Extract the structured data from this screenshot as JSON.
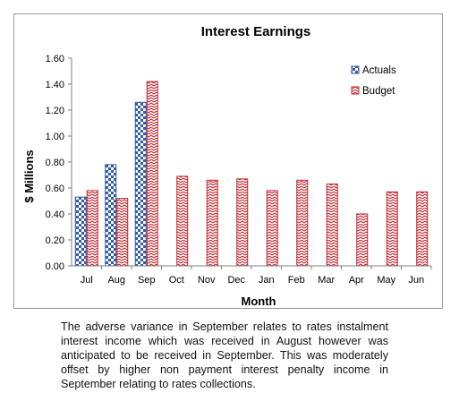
{
  "chart_data": {
    "type": "bar",
    "title": "Interest Earnings",
    "xlabel": "Month",
    "ylabel": "$ Millions",
    "ylim": [
      0,
      1.6
    ],
    "yticks": [
      "0.00",
      "0.20",
      "0.40",
      "0.60",
      "0.80",
      "1.00",
      "1.20",
      "1.40",
      "1.60"
    ],
    "categories": [
      "Jul",
      "Aug",
      "Sep",
      "Oct",
      "Nov",
      "Dec",
      "Jan",
      "Feb",
      "Mar",
      "Apr",
      "May",
      "Jun"
    ],
    "series": [
      {
        "name": "Actuals",
        "values": [
          0.53,
          0.78,
          1.26,
          null,
          null,
          null,
          null,
          null,
          null,
          null,
          null,
          null
        ],
        "color": "#2f5aa6"
      },
      {
        "name": "Budget",
        "values": [
          0.58,
          0.52,
          1.42,
          0.69,
          0.66,
          0.67,
          0.58,
          0.66,
          0.63,
          0.4,
          0.57,
          0.57
        ],
        "color": "#c0262c"
      }
    ],
    "legend_position": "top-right",
    "grid": false
  },
  "caption": "The adverse variance in September relates to rates instalment interest income which was received in August however was anticipated to be received in September. This was moderately offset by higher non payment interest penalty income in September relating to rates collections."
}
